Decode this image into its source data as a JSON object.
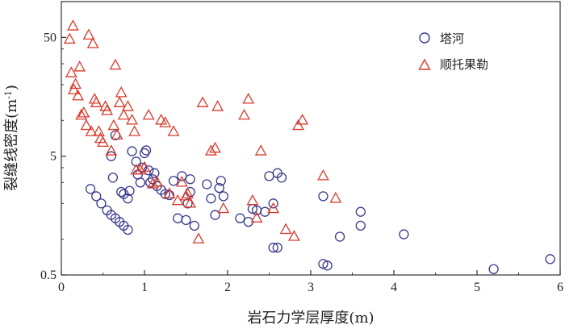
{
  "chart_data": {
    "type": "scatter",
    "title": "",
    "xlabel": "岩石力学层厚度(m)",
    "ylabel": "裂缝线密度(m",
    "ylabel_sup": "-1",
    "ylabel_close": ")",
    "xlim": [
      0,
      6
    ],
    "ylim": [
      0.5,
      100
    ],
    "yscale": "log",
    "x_ticks": [
      "0",
      "1",
      "2",
      "3",
      "4",
      "5",
      "6"
    ],
    "y_ticks": [
      "0.5",
      "5",
      "50"
    ],
    "legend_position": "top-right",
    "series": [
      {
        "name": "塔河",
        "marker": "circle",
        "color": "#3a3a8a",
        "points": [
          [
            0.35,
            2.65
          ],
          [
            0.42,
            2.3
          ],
          [
            0.48,
            2.0
          ],
          [
            0.55,
            1.75
          ],
          [
            0.6,
            1.6
          ],
          [
            0.65,
            1.5
          ],
          [
            0.7,
            1.4
          ],
          [
            0.75,
            1.3
          ],
          [
            0.8,
            1.2
          ],
          [
            0.6,
            5.0
          ],
          [
            0.62,
            3.3
          ],
          [
            0.65,
            7.5
          ],
          [
            0.72,
            2.5
          ],
          [
            0.75,
            2.4
          ],
          [
            0.8,
            2.2
          ],
          [
            0.82,
            2.55
          ],
          [
            0.85,
            5.5
          ],
          [
            0.9,
            4.5
          ],
          [
            0.92,
            3.5
          ],
          [
            0.95,
            3.0
          ],
          [
            0.97,
            4.0
          ],
          [
            1.0,
            5.3
          ],
          [
            1.02,
            5.6
          ],
          [
            1.05,
            3.8
          ],
          [
            1.07,
            3.0
          ],
          [
            1.1,
            3.2
          ],
          [
            1.12,
            3.6
          ],
          [
            1.15,
            2.8
          ],
          [
            1.2,
            2.6
          ],
          [
            1.25,
            2.4
          ],
          [
            1.3,
            2.35
          ],
          [
            1.35,
            3.1
          ],
          [
            1.4,
            1.5
          ],
          [
            1.45,
            3.4
          ],
          [
            1.5,
            1.45
          ],
          [
            1.52,
            2.0
          ],
          [
            1.55,
            2.5
          ],
          [
            1.6,
            1.3
          ],
          [
            1.55,
            3.2
          ],
          [
            1.75,
            2.9
          ],
          [
            1.8,
            2.2
          ],
          [
            1.85,
            1.6
          ],
          [
            1.9,
            2.7
          ],
          [
            1.92,
            3.1
          ],
          [
            1.95,
            2.3
          ],
          [
            2.15,
            1.5
          ],
          [
            2.25,
            1.4
          ],
          [
            2.3,
            1.8
          ],
          [
            2.35,
            1.75
          ],
          [
            2.45,
            1.7
          ],
          [
            2.5,
            3.4
          ],
          [
            2.55,
            0.85
          ],
          [
            2.6,
            0.85
          ],
          [
            2.6,
            3.6
          ],
          [
            2.65,
            3.3
          ],
          [
            2.55,
            2.0
          ],
          [
            3.15,
            2.3
          ],
          [
            3.15,
            0.62
          ],
          [
            3.2,
            0.6
          ],
          [
            3.35,
            1.05
          ],
          [
            3.6,
            1.3
          ],
          [
            3.6,
            1.7
          ],
          [
            4.12,
            1.1
          ],
          [
            5.2,
            0.56
          ],
          [
            5.88,
            0.68
          ]
        ]
      },
      {
        "name": "顺托果勒",
        "marker": "triangle",
        "color": "#d93a2b",
        "points": [
          [
            0.1,
            48
          ],
          [
            0.12,
            25
          ],
          [
            0.14,
            62
          ],
          [
            0.15,
            18
          ],
          [
            0.17,
            20
          ],
          [
            0.2,
            16
          ],
          [
            0.22,
            28
          ],
          [
            0.24,
            11
          ],
          [
            0.27,
            11.5
          ],
          [
            0.3,
            9
          ],
          [
            0.33,
            52
          ],
          [
            0.36,
            8
          ],
          [
            0.38,
            44
          ],
          [
            0.4,
            15
          ],
          [
            0.42,
            14
          ],
          [
            0.45,
            8
          ],
          [
            0.47,
            7
          ],
          [
            0.5,
            6.5
          ],
          [
            0.53,
            13
          ],
          [
            0.55,
            12
          ],
          [
            0.6,
            5.5
          ],
          [
            0.63,
            9
          ],
          [
            0.65,
            29
          ],
          [
            0.67,
            7.5
          ],
          [
            0.7,
            14
          ],
          [
            0.72,
            17
          ],
          [
            0.75,
            11
          ],
          [
            0.8,
            13
          ],
          [
            0.85,
            10
          ],
          [
            0.88,
            8
          ],
          [
            0.9,
            3.8
          ],
          [
            0.95,
            3.8
          ],
          [
            1.0,
            4.0
          ],
          [
            1.05,
            11
          ],
          [
            1.1,
            2.9
          ],
          [
            1.15,
            3.0
          ],
          [
            1.2,
            10
          ],
          [
            1.25,
            9.5
          ],
          [
            1.3,
            2.4
          ],
          [
            1.35,
            8
          ],
          [
            1.4,
            2.1
          ],
          [
            1.45,
            3.0
          ],
          [
            1.5,
            2.3
          ],
          [
            1.52,
            2.4
          ],
          [
            1.55,
            2.0
          ],
          [
            1.65,
            1.0
          ],
          [
            1.7,
            14
          ],
          [
            1.8,
            5.5
          ],
          [
            1.85,
            5.8
          ],
          [
            1.88,
            13
          ],
          [
            1.95,
            1.8
          ],
          [
            2.2,
            11
          ],
          [
            2.25,
            15
          ],
          [
            2.3,
            2.1
          ],
          [
            2.35,
            1.5
          ],
          [
            2.4,
            5.5
          ],
          [
            2.55,
            1.8
          ],
          [
            2.7,
            1.2
          ],
          [
            2.8,
            1.05
          ],
          [
            2.85,
            9
          ],
          [
            2.9,
            10
          ],
          [
            3.15,
            3.4
          ],
          [
            3.3,
            2.2
          ]
        ]
      }
    ]
  }
}
